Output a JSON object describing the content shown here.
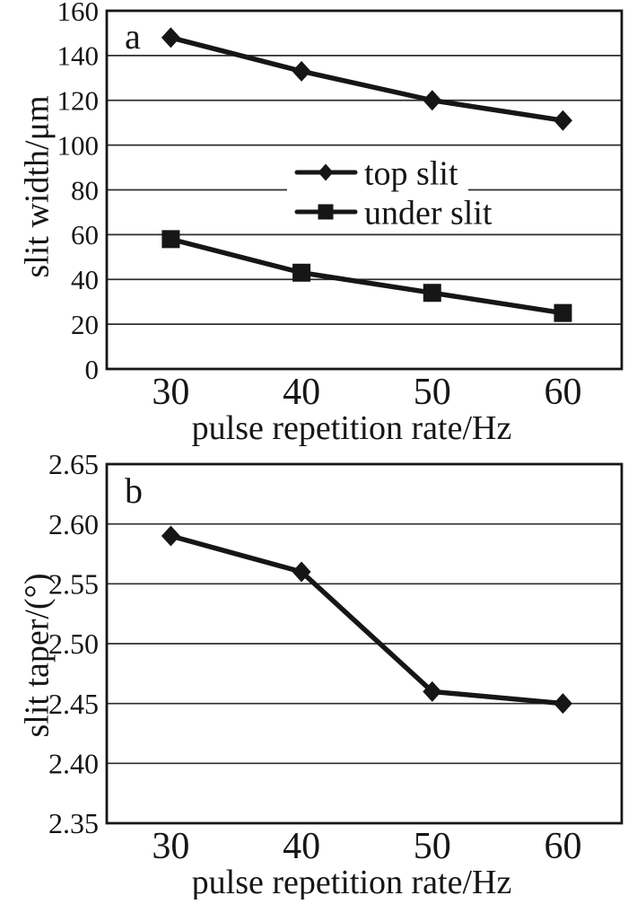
{
  "figure": {
    "background": "#ffffff",
    "ink_color": "#161616",
    "grid_color": "#2e2e2e"
  },
  "chart_data": [
    {
      "type": "line",
      "panel_label": "a",
      "x": [
        30,
        40,
        50,
        60
      ],
      "xticks": [
        "30",
        "40",
        "50",
        "60"
      ],
      "series": [
        {
          "name": "top slit",
          "marker": "diamond",
          "values": [
            148,
            133,
            120,
            111
          ]
        },
        {
          "name": "under slit",
          "marker": "square",
          "values": [
            58,
            43,
            34,
            25
          ]
        }
      ],
      "xlabel": "pulse repetition rate/Hz",
      "ylabel": "slit width/μm",
      "xlim": [
        25.1,
        64.5
      ],
      "ylim": [
        0,
        160
      ],
      "yticks": [
        0,
        20,
        40,
        60,
        80,
        100,
        120,
        140,
        160
      ],
      "ytick_labels": [
        "0",
        "20",
        "40",
        "60",
        "80",
        "100",
        "120",
        "140",
        "160"
      ],
      "grid": "horizontal",
      "legend_position": "inside-center"
    },
    {
      "type": "line",
      "panel_label": "b",
      "x": [
        30,
        40,
        50,
        60
      ],
      "xticks": [
        "30",
        "40",
        "50",
        "60"
      ],
      "series": [
        {
          "name": "slit taper",
          "marker": "diamond",
          "values": [
            2.59,
            2.56,
            2.46,
            2.45
          ]
        }
      ],
      "xlabel": "pulse repetition rate/Hz",
      "ylabel": "slit taper/(°)",
      "xlim": [
        25.1,
        64.5
      ],
      "ylim": [
        2.35,
        2.65
      ],
      "yticks": [
        2.35,
        2.4,
        2.45,
        2.5,
        2.55,
        2.6,
        2.65
      ],
      "ytick_labels": [
        "2.35",
        "2.40",
        "2.45",
        "2.50",
        "2.55",
        "2.60",
        "2.65"
      ],
      "grid": "horizontal",
      "legend_position": "none"
    }
  ]
}
